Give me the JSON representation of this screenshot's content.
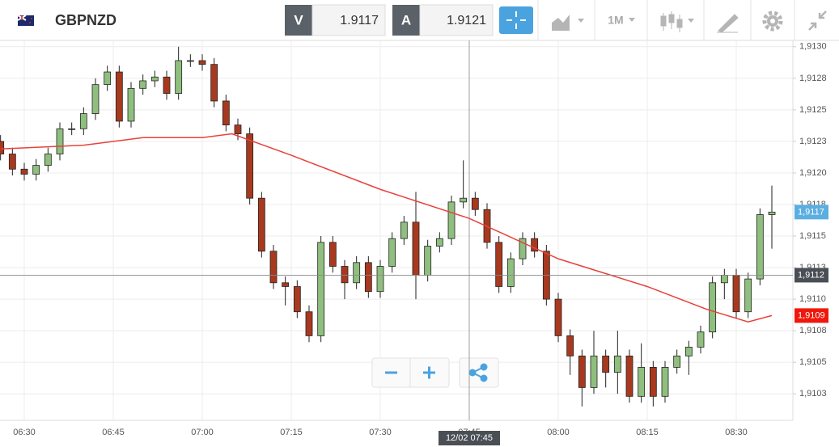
{
  "toolbar": {
    "symbol": "GBPNZD",
    "bid": {
      "letter": "V",
      "price": "1.9117"
    },
    "ask": {
      "letter": "A",
      "price": "1.9121"
    },
    "period": "1M"
  },
  "chart_data": {
    "type": "candlestick",
    "x": [
      "06:26",
      "06:28",
      "06:30",
      "06:32",
      "06:34",
      "06:36",
      "06:38",
      "06:40",
      "06:42",
      "06:44",
      "06:46",
      "06:48",
      "06:50",
      "06:52",
      "06:54",
      "06:56",
      "06:58",
      "07:00",
      "07:02",
      "07:04",
      "07:06",
      "07:08",
      "07:10",
      "07:12",
      "07:14",
      "07:16",
      "07:18",
      "07:20",
      "07:22",
      "07:24",
      "07:26",
      "07:28",
      "07:30",
      "07:32",
      "07:34",
      "07:36",
      "07:38",
      "07:40",
      "07:42",
      "07:44",
      "07:46",
      "07:48",
      "07:50",
      "07:52",
      "07:54",
      "07:56",
      "07:58",
      "08:00",
      "08:02",
      "08:04",
      "08:06",
      "08:08",
      "08:10",
      "08:12",
      "08:14",
      "08:16",
      "08:18",
      "08:20",
      "08:22",
      "08:24",
      "08:26",
      "08:28",
      "08:30",
      "08:32",
      "08:34",
      "08:36"
    ],
    "open": [
      1.91225,
      1.91215,
      1.91203,
      1.91199,
      1.91206,
      1.91215,
      1.91235,
      1.91235,
      1.91247,
      1.9127,
      1.9128,
      1.91241,
      1.91267,
      1.91273,
      1.91276,
      1.91263,
      1.91289,
      1.91289,
      1.91286,
      1.91257,
      1.91238,
      1.91231,
      1.9118,
      1.91138,
      1.91113,
      1.9111,
      1.9109,
      1.91071,
      1.91145,
      1.91126,
      1.91113,
      1.91129,
      1.91106,
      1.91126,
      1.91148,
      1.91161,
      1.91119,
      1.91142,
      1.91148,
      1.91177,
      1.9118,
      1.91171,
      1.91145,
      1.9111,
      1.91132,
      1.91148,
      1.91138,
      1.911,
      1.91071,
      1.91055,
      1.9103,
      1.91055,
      1.91042,
      1.91055,
      1.91023,
      1.91046,
      1.91023,
      1.91046,
      1.91055,
      1.91062,
      1.91074,
      1.91113,
      1.91119,
      1.9109,
      1.91116,
      1.91167
    ],
    "high": [
      1.9123,
      1.9122,
      1.91208,
      1.91211,
      1.9122,
      1.9124,
      1.9124,
      1.91252,
      1.91275,
      1.91285,
      1.91285,
      1.91272,
      1.91278,
      1.91281,
      1.91281,
      1.913,
      1.91294,
      1.91294,
      1.91291,
      1.91262,
      1.91243,
      1.91236,
      1.91185,
      1.91143,
      1.91118,
      1.91115,
      1.91095,
      1.9115,
      1.9115,
      1.91131,
      1.91134,
      1.91134,
      1.91131,
      1.91153,
      1.91166,
      1.91185,
      1.91147,
      1.91153,
      1.91182,
      1.9121,
      1.91185,
      1.91176,
      1.9115,
      1.91137,
      1.91153,
      1.91153,
      1.91143,
      1.91105,
      1.91076,
      1.9106,
      1.91075,
      1.9106,
      1.91075,
      1.9106,
      1.91065,
      1.91051,
      1.91051,
      1.9106,
      1.91067,
      1.91079,
      1.91118,
      1.91124,
      1.91124,
      1.91121,
      1.91172,
      1.9119
    ],
    "low": [
      1.9121,
      1.91198,
      1.91194,
      1.91194,
      1.91201,
      1.9121,
      1.9123,
      1.9123,
      1.91242,
      1.91265,
      1.91236,
      1.91236,
      1.91262,
      1.91268,
      1.91258,
      1.91258,
      1.91284,
      1.91281,
      1.91252,
      1.91233,
      1.91226,
      1.91175,
      1.91133,
      1.91108,
      1.91095,
      1.91085,
      1.91066,
      1.91066,
      1.91121,
      1.911,
      1.91108,
      1.91101,
      1.91101,
      1.91121,
      1.91143,
      1.911,
      1.91114,
      1.91137,
      1.91143,
      1.91172,
      1.91166,
      1.9114,
      1.91105,
      1.91105,
      1.91127,
      1.91133,
      1.91095,
      1.91066,
      1.9104,
      1.91015,
      1.91025,
      1.9103,
      1.91025,
      1.91018,
      1.91018,
      1.91015,
      1.91018,
      1.91041,
      1.9104,
      1.91057,
      1.91069,
      1.911,
      1.91085,
      1.91085,
      1.91111,
      1.9114
    ],
    "close": [
      1.91215,
      1.91203,
      1.91199,
      1.91206,
      1.91215,
      1.91235,
      1.91235,
      1.91247,
      1.9127,
      1.9128,
      1.91241,
      1.91267,
      1.91273,
      1.91276,
      1.91263,
      1.91289,
      1.91289,
      1.91286,
      1.91257,
      1.91238,
      1.91231,
      1.9118,
      1.91138,
      1.91113,
      1.9111,
      1.9109,
      1.91071,
      1.91145,
      1.91126,
      1.91113,
      1.91129,
      1.91106,
      1.91126,
      1.91148,
      1.91161,
      1.91119,
      1.91142,
      1.91148,
      1.91177,
      1.9118,
      1.91171,
      1.91145,
      1.9111,
      1.91132,
      1.91148,
      1.91138,
      1.911,
      1.91071,
      1.91055,
      1.9103,
      1.91055,
      1.91042,
      1.91055,
      1.91023,
      1.91046,
      1.91023,
      1.91046,
      1.91055,
      1.91062,
      1.91074,
      1.91113,
      1.91119,
      1.9109,
      1.91116,
      1.91167,
      1.91169
    ],
    "up_color": "#8fbf7e",
    "down_color": "#a8391f",
    "moving_average": {
      "color": "#e8413a",
      "x": [
        "06:26",
        "06:40",
        "06:50",
        "07:00",
        "07:05",
        "07:15",
        "07:30",
        "07:45",
        "08:00",
        "08:15",
        "08:25",
        "08:32",
        "08:36"
      ],
      "values": [
        1.91219,
        1.91222,
        1.91228,
        1.91228,
        1.91231,
        1.91214,
        1.91187,
        1.91164,
        1.91132,
        1.9111,
        1.91092,
        1.91082,
        1.91087
      ]
    },
    "ylim": [
      1.91004,
      1.91305
    ],
    "yticks": [
      {
        "value": 1.913,
        "label": "1,9130"
      },
      {
        "value": 1.91275,
        "label": "1,9128"
      },
      {
        "value": 1.9125,
        "label": "1,9125"
      },
      {
        "value": 1.91225,
        "label": "1,9123"
      },
      {
        "value": 1.912,
        "label": "1,9120"
      },
      {
        "value": 1.91175,
        "label": "1,9118"
      },
      {
        "value": 1.9115,
        "label": "1,9115"
      },
      {
        "value": 1.91125,
        "label": "1,9113"
      },
      {
        "value": 1.911,
        "label": "1,9110"
      },
      {
        "value": 1.91075,
        "label": "1,9108"
      },
      {
        "value": 1.9105,
        "label": "1,9105"
      },
      {
        "value": 1.91025,
        "label": "1,9103"
      }
    ],
    "xticks": [
      "06:30",
      "06:45",
      "07:00",
      "07:15",
      "07:30",
      "07:45",
      "08:00",
      "08:15",
      "08:30"
    ],
    "grid": true,
    "price_labels": [
      {
        "value": 1.91169,
        "label": "1,9117",
        "color": "#5aaee0"
      },
      {
        "value": 1.91087,
        "label": "1,9109",
        "color": "#f0180c"
      }
    ],
    "crosshair": {
      "x": "07:45",
      "value": 1.91119,
      "label": "1,9112",
      "time_label": "12/02 07:45"
    }
  }
}
